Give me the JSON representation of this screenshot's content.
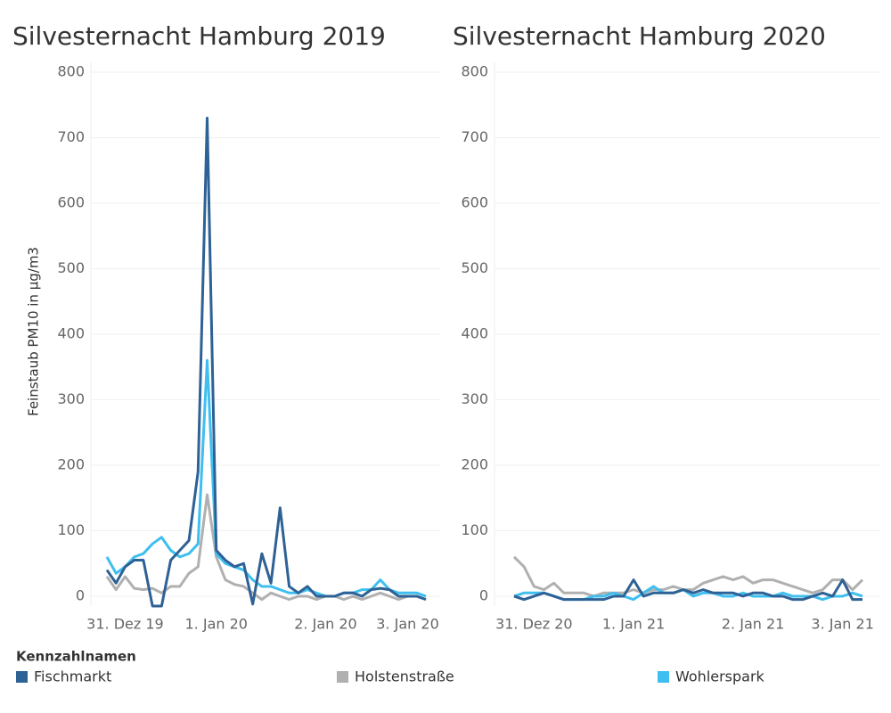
{
  "chart_data": [
    {
      "type": "line",
      "title": "Silvesternacht Hamburg 2019",
      "ylabel": "Feinstaub PM10 in µg/m3",
      "legend_title": "Kennzahlnamen",
      "categories": [
        null,
        null,
        "31. Dez 19",
        null,
        null,
        null,
        null,
        null,
        null,
        null,
        null,
        null,
        "1. Jan 20",
        null,
        null,
        null,
        null,
        null,
        null,
        null,
        null,
        null,
        null,
        null,
        "2. Jan 20",
        null,
        null,
        null,
        null,
        null,
        null,
        null,
        null,
        "3. Jan 20",
        null,
        null
      ],
      "ylim": [
        -15,
        815
      ],
      "yticks": [
        0,
        100,
        200,
        300,
        400,
        500,
        600,
        700,
        800
      ],
      "grid": true,
      "series": [
        {
          "name": "Fischmarkt",
          "color": "#2e6195",
          "values": [
            40,
            20,
            45,
            55,
            55,
            -15,
            -15,
            55,
            70,
            85,
            190,
            730,
            70,
            55,
            45,
            50,
            -12,
            65,
            20,
            135,
            15,
            5,
            15,
            0,
            0,
            0,
            5,
            5,
            0,
            10,
            12,
            10,
            0,
            0,
            0,
            -5
          ]
        },
        {
          "name": "Holstenstraße",
          "color": "#b0b0b0",
          "values": [
            30,
            10,
            30,
            12,
            10,
            12,
            5,
            15,
            15,
            35,
            45,
            155,
            60,
            25,
            18,
            15,
            5,
            -5,
            5,
            0,
            -5,
            0,
            0,
            -5,
            0,
            0,
            -5,
            0,
            -5,
            0,
            5,
            0,
            -5,
            0,
            0,
            -5
          ]
        },
        {
          "name": "Wohlerspark",
          "color": "#3fbfef",
          "values": [
            60,
            35,
            45,
            60,
            65,
            80,
            90,
            70,
            60,
            65,
            80,
            360,
            65,
            50,
            45,
            40,
            25,
            15,
            15,
            10,
            5,
            5,
            10,
            5,
            0,
            0,
            5,
            5,
            10,
            10,
            25,
            10,
            5,
            5,
            5,
            0
          ]
        }
      ]
    },
    {
      "type": "line",
      "title": "Silvesternacht Hamburg 2020",
      "categories": [
        null,
        null,
        "31. Dez 20",
        null,
        null,
        null,
        null,
        null,
        null,
        null,
        null,
        null,
        "1. Jan 21",
        null,
        null,
        null,
        null,
        null,
        null,
        null,
        null,
        null,
        null,
        null,
        "2. Jan 21",
        null,
        null,
        null,
        null,
        null,
        null,
        null,
        null,
        "3. Jan 21",
        null,
        null
      ],
      "ylim": [
        -15,
        815
      ],
      "yticks": [
        0,
        100,
        200,
        300,
        400,
        500,
        600,
        700,
        800
      ],
      "grid": true,
      "series": [
        {
          "name": "Fischmarkt",
          "color": "#2e6195",
          "values": [
            0,
            -5,
            0,
            5,
            0,
            -5,
            -5,
            -5,
            -5,
            -5,
            0,
            0,
            25,
            0,
            5,
            5,
            5,
            10,
            5,
            10,
            5,
            5,
            5,
            0,
            5,
            5,
            0,
            0,
            -5,
            -5,
            0,
            5,
            0,
            25,
            -5,
            -5
          ]
        },
        {
          "name": "Holstenstraße",
          "color": "#b0b0b0",
          "values": [
            60,
            45,
            15,
            10,
            20,
            5,
            5,
            5,
            0,
            5,
            5,
            5,
            10,
            5,
            10,
            10,
            15,
            10,
            10,
            20,
            25,
            30,
            25,
            30,
            20,
            25,
            25,
            20,
            15,
            10,
            5,
            10,
            25,
            25,
            10,
            25
          ]
        },
        {
          "name": "Wohlerspark",
          "color": "#3fbfef",
          "values": [
            0,
            5,
            5,
            5,
            0,
            -5,
            -5,
            -5,
            0,
            0,
            5,
            0,
            -5,
            5,
            15,
            5,
            5,
            10,
            0,
            5,
            5,
            0,
            0,
            5,
            0,
            0,
            0,
            5,
            0,
            0,
            0,
            -5,
            0,
            0,
            5,
            0
          ]
        }
      ]
    }
  ]
}
